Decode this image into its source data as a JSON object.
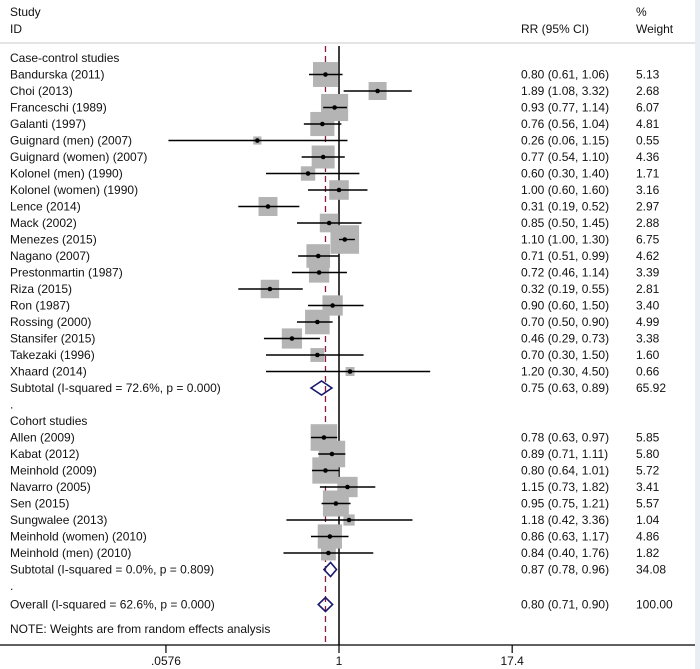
{
  "chart_data": {
    "type": "forest",
    "header": {
      "study": "Study",
      "id": "ID",
      "effect": "RR (95% CI)",
      "weight_pct": "%",
      "weight": "Weight"
    },
    "x_scale": "log",
    "x_ticks": [
      {
        "value": 0.0576,
        "label": ".0576"
      },
      {
        "value": 1,
        "label": "1"
      },
      {
        "value": 17.4,
        "label": "17.4"
      }
    ],
    "null_line": 1,
    "overall_line": 0.8,
    "colors": {
      "box": "#b4b4b4",
      "diamond": "#1a1a6e",
      "overall_line": "#8b1a3a",
      "ci": "#000000"
    },
    "rows": [
      {
        "type": "group",
        "label": "Case-control studies"
      },
      {
        "type": "study",
        "label": "Bandurska  (2011)",
        "rr": 0.8,
        "lo": 0.61,
        "hi": 1.06,
        "ci_text": "0.80 (0.61, 1.06)",
        "weight": "5.13"
      },
      {
        "type": "study",
        "label": "Choi  (2013)",
        "rr": 1.89,
        "lo": 1.08,
        "hi": 3.32,
        "ci_text": "1.89 (1.08, 3.32)",
        "weight": "2.68"
      },
      {
        "type": "study",
        "label": "Franceschi  (1989)",
        "rr": 0.93,
        "lo": 0.77,
        "hi": 1.14,
        "ci_text": "0.93 (0.77, 1.14)",
        "weight": "6.07"
      },
      {
        "type": "study",
        "label": "Galanti  (1997)",
        "rr": 0.76,
        "lo": 0.56,
        "hi": 1.04,
        "ci_text": "0.76 (0.56, 1.04)",
        "weight": "4.81"
      },
      {
        "type": "study",
        "label": "Guignard (men) (2007)",
        "rr": 0.26,
        "lo": 0.06,
        "hi": 1.15,
        "ci_text": "0.26 (0.06, 1.15)",
        "weight": "0.55"
      },
      {
        "type": "study",
        "label": "Guignard (women) (2007)",
        "rr": 0.77,
        "lo": 0.54,
        "hi": 1.1,
        "ci_text": "0.77 (0.54, 1.10)",
        "weight": "4.36"
      },
      {
        "type": "study",
        "label": "Kolonel (men) (1990)",
        "rr": 0.6,
        "lo": 0.3,
        "hi": 1.4,
        "ci_text": "0.60 (0.30, 1.40)",
        "weight": "1.71"
      },
      {
        "type": "study",
        "label": "Kolonel (women) (1990)",
        "rr": 1.0,
        "lo": 0.6,
        "hi": 1.6,
        "ci_text": "1.00 (0.60, 1.60)",
        "weight": "3.16"
      },
      {
        "type": "study",
        "label": "Lence  (2014)",
        "rr": 0.31,
        "lo": 0.19,
        "hi": 0.52,
        "ci_text": "0.31 (0.19, 0.52)",
        "weight": "2.97"
      },
      {
        "type": "study",
        "label": "Mack  (2002)",
        "rr": 0.85,
        "lo": 0.5,
        "hi": 1.45,
        "ci_text": "0.85 (0.50, 1.45)",
        "weight": "2.88"
      },
      {
        "type": "study",
        "label": "Menezes  (2015)",
        "rr": 1.1,
        "lo": 1.0,
        "hi": 1.3,
        "ci_text": "1.10 (1.00, 1.30)",
        "weight": "6.75"
      },
      {
        "type": "study",
        "label": "Nagano  (2007)",
        "rr": 0.71,
        "lo": 0.51,
        "hi": 0.99,
        "ci_text": "0.71 (0.51, 0.99)",
        "weight": "4.62"
      },
      {
        "type": "study",
        "label": "Prestonmartin  (1987)",
        "rr": 0.72,
        "lo": 0.46,
        "hi": 1.14,
        "ci_text": "0.72 (0.46, 1.14)",
        "weight": "3.39"
      },
      {
        "type": "study",
        "label": "Riza  (2015)",
        "rr": 0.32,
        "lo": 0.19,
        "hi": 0.55,
        "ci_text": "0.32 (0.19, 0.55)",
        "weight": "2.81"
      },
      {
        "type": "study",
        "label": "Ron  (1987)",
        "rr": 0.9,
        "lo": 0.6,
        "hi": 1.5,
        "ci_text": "0.90 (0.60, 1.50)",
        "weight": "3.40"
      },
      {
        "type": "study",
        "label": "Rossing  (2000)",
        "rr": 0.7,
        "lo": 0.5,
        "hi": 0.9,
        "ci_text": "0.70 (0.50, 0.90)",
        "weight": "4.99"
      },
      {
        "type": "study",
        "label": "Stansifer  (2015)",
        "rr": 0.46,
        "lo": 0.29,
        "hi": 0.73,
        "ci_text": "0.46 (0.29, 0.73)",
        "weight": "3.38"
      },
      {
        "type": "study",
        "label": "Takezaki  (1996)",
        "rr": 0.7,
        "lo": 0.3,
        "hi": 1.5,
        "ci_text": "0.70 (0.30, 1.50)",
        "weight": "1.60"
      },
      {
        "type": "study",
        "label": "Xhaard  (2014)",
        "rr": 1.2,
        "lo": 0.3,
        "hi": 4.5,
        "ci_text": "1.20 (0.30, 4.50)",
        "weight": "0.66"
      },
      {
        "type": "subtotal",
        "label": "Subtotal  (I-squared = 72.6%, p = 0.000)",
        "rr": 0.75,
        "lo": 0.63,
        "hi": 0.89,
        "ci_text": "0.75 (0.63, 0.89)",
        "weight": "65.92"
      },
      {
        "type": "spacer",
        "label": "."
      },
      {
        "type": "group",
        "label": "Cohort studies"
      },
      {
        "type": "study",
        "label": "Allen  (2009)",
        "rr": 0.78,
        "lo": 0.63,
        "hi": 0.97,
        "ci_text": "0.78 (0.63, 0.97)",
        "weight": "5.85"
      },
      {
        "type": "study",
        "label": "Kabat  (2012)",
        "rr": 0.89,
        "lo": 0.71,
        "hi": 1.11,
        "ci_text": "0.89 (0.71, 1.11)",
        "weight": "5.80"
      },
      {
        "type": "study",
        "label": "Meinhold  (2009)",
        "rr": 0.8,
        "lo": 0.64,
        "hi": 1.01,
        "ci_text": "0.80 (0.64, 1.01)",
        "weight": "5.72"
      },
      {
        "type": "study",
        "label": "Navarro  (2005)",
        "rr": 1.15,
        "lo": 0.73,
        "hi": 1.82,
        "ci_text": "1.15 (0.73, 1.82)",
        "weight": "3.41"
      },
      {
        "type": "study",
        "label": "Sen  (2015)",
        "rr": 0.95,
        "lo": 0.75,
        "hi": 1.21,
        "ci_text": "0.95 (0.75, 1.21)",
        "weight": "5.57"
      },
      {
        "type": "study",
        "label": "Sungwalee  (2013)",
        "rr": 1.18,
        "lo": 0.42,
        "hi": 3.36,
        "ci_text": "1.18 (0.42, 3.36)",
        "weight": "1.04"
      },
      {
        "type": "study",
        "label": "Meinhold (women) (2010)",
        "rr": 0.86,
        "lo": 0.63,
        "hi": 1.17,
        "ci_text": "0.86 (0.63, 1.17)",
        "weight": "4.86"
      },
      {
        "type": "study",
        "label": "Meinhold (men) (2010)",
        "rr": 0.84,
        "lo": 0.4,
        "hi": 1.76,
        "ci_text": "0.84 (0.40, 1.76)",
        "weight": "1.82"
      },
      {
        "type": "subtotal",
        "label": "Subtotal  (I-squared = 0.0%, p = 0.809)",
        "rr": 0.87,
        "lo": 0.78,
        "hi": 0.96,
        "ci_text": "0.87 (0.78, 0.96)",
        "weight": "34.08"
      },
      {
        "type": "spacer",
        "label": "."
      },
      {
        "type": "overall",
        "label": "Overall  (I-squared = 62.6%, p = 0.000)",
        "rr": 0.8,
        "lo": 0.71,
        "hi": 0.9,
        "ci_text": "0.80 (0.71, 0.90)",
        "weight": "100.00"
      }
    ],
    "note": "NOTE: Weights are from random effects analysis"
  }
}
